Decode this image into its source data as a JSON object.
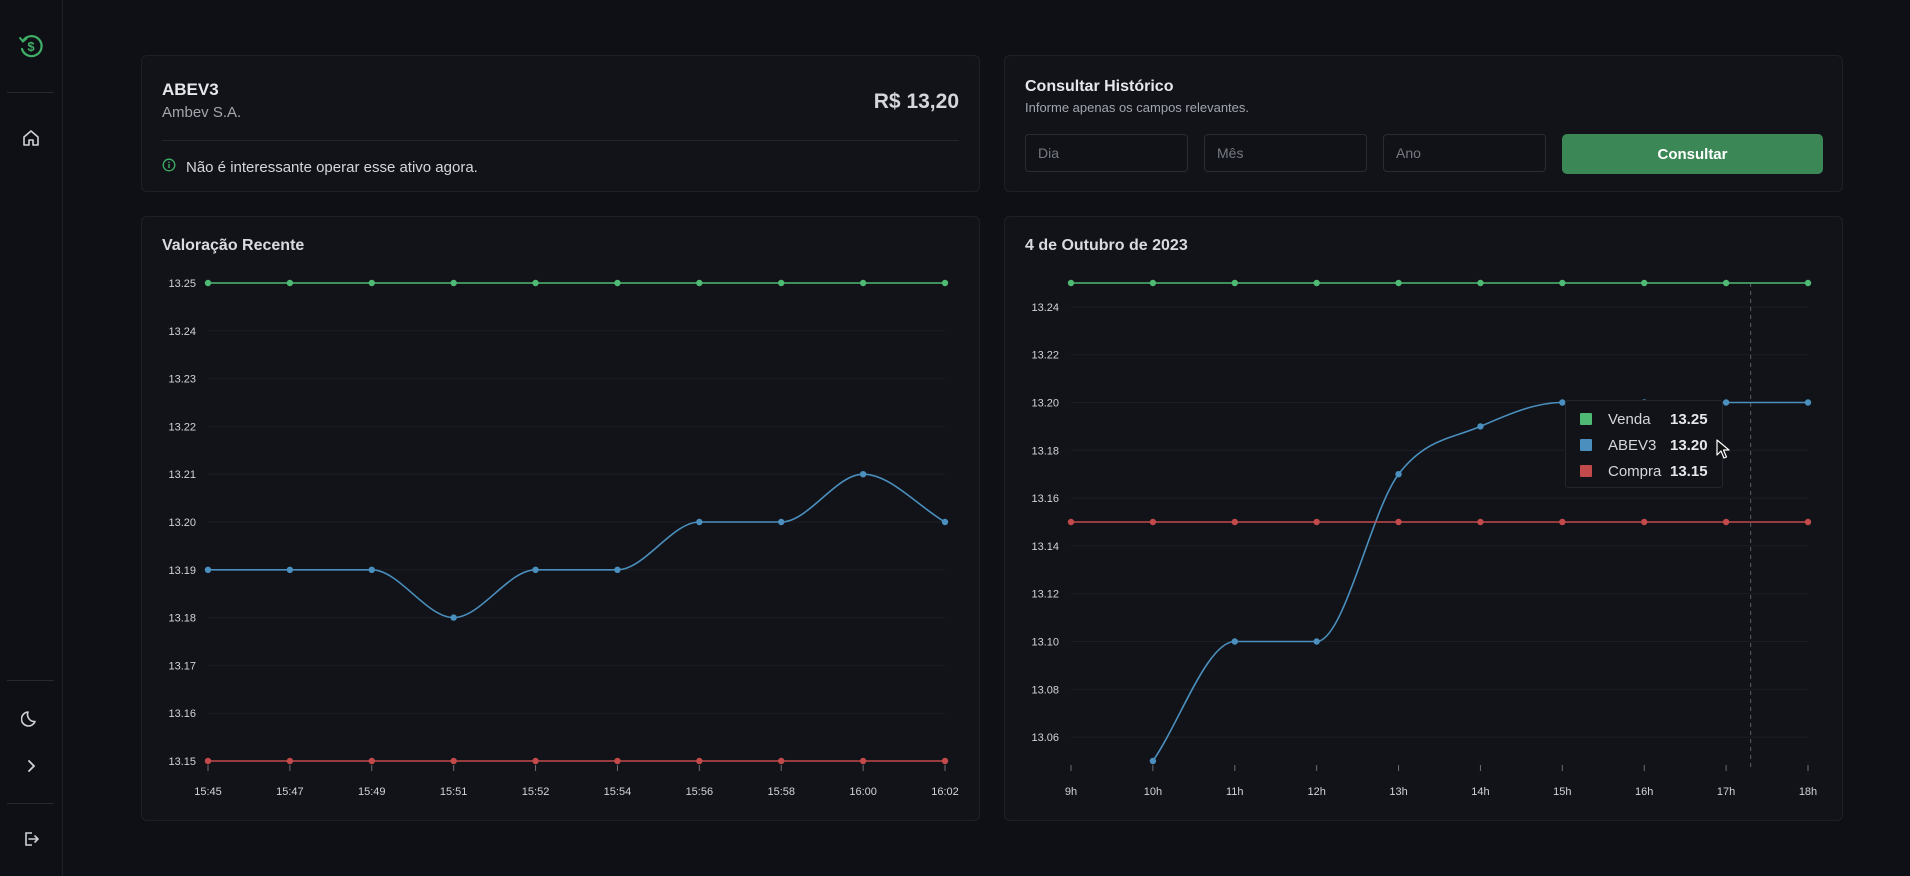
{
  "sidebar": {
    "logo_icon": "dollar-refresh-icon",
    "items": [
      {
        "icon": "home-icon"
      },
      {
        "icon": "moon-icon"
      },
      {
        "icon": "chevron-right-icon"
      },
      {
        "icon": "logout-icon"
      }
    ]
  },
  "asset": {
    "ticker": "ABEV3",
    "company": "Ambev S.A.",
    "price": "R$ 13,20",
    "recommendation": "Não é interessante operar esse ativo agora."
  },
  "history": {
    "title": "Consultar Histórico",
    "subtitle": "Informe apenas os campos relevantes.",
    "day_placeholder": "Dia",
    "month_placeholder": "Mês",
    "year_placeholder": "Ano",
    "submit_label": "Consultar"
  },
  "colors": {
    "venda": "#4fba74",
    "ticker": "#4a8fbd",
    "compra": "#c24a4a",
    "accent": "#3b8755"
  },
  "chart_data": [
    {
      "type": "line",
      "title": "Valoração Recente",
      "categories": [
        "15:45",
        "15:47",
        "15:49",
        "15:51",
        "15:52",
        "15:54",
        "15:56",
        "15:58",
        "16:00",
        "16:02"
      ],
      "ylim": [
        13.15,
        13.25
      ],
      "yticks": [
        "13.25",
        "13.24",
        "13.23",
        "13.22",
        "13.21",
        "13.20",
        "13.19",
        "13.18",
        "13.17",
        "13.16",
        "13.15"
      ],
      "grid": true,
      "series": [
        {
          "key": "venda",
          "values": [
            13.25,
            13.25,
            13.25,
            13.25,
            13.25,
            13.25,
            13.25,
            13.25,
            13.25,
            13.25
          ]
        },
        {
          "key": "ticker",
          "values": [
            13.19,
            13.19,
            13.19,
            13.18,
            13.19,
            13.19,
            13.2,
            13.2,
            13.21,
            13.2
          ]
        },
        {
          "key": "compra",
          "values": [
            13.15,
            13.15,
            13.15,
            13.15,
            13.15,
            13.15,
            13.15,
            13.15,
            13.15,
            13.15
          ]
        }
      ]
    },
    {
      "type": "line",
      "title": "4 de Outubro de 2023",
      "categories": [
        "9h",
        "10h",
        "11h",
        "12h",
        "13h",
        "14h",
        "15h",
        "16h",
        "17h",
        "18h"
      ],
      "ylim": [
        13.05,
        13.25
      ],
      "yticks": [
        "13.24",
        "13.22",
        "13.20",
        "13.18",
        "13.16",
        "13.14",
        "13.12",
        "13.10",
        "13.08",
        "13.06"
      ],
      "grid": true,
      "series": [
        {
          "key": "venda",
          "values": [
            13.25,
            13.25,
            13.25,
            13.25,
            13.25,
            13.25,
            13.25,
            13.25,
            13.25,
            13.25
          ]
        },
        {
          "key": "ticker",
          "values": [
            null,
            13.05,
            13.1,
            13.1,
            13.17,
            13.19,
            13.2,
            13.2,
            13.2,
            13.2
          ]
        },
        {
          "key": "compra",
          "values": [
            13.15,
            13.15,
            13.15,
            13.15,
            13.15,
            13.15,
            13.15,
            13.15,
            13.15,
            13.15
          ]
        }
      ],
      "tooltip": {
        "rows": [
          {
            "name": "Venda",
            "value": "13.25"
          },
          {
            "name": "ABEV3",
            "value": "13.20"
          },
          {
            "name": "Compra",
            "value": "13.15"
          }
        ]
      }
    }
  ]
}
